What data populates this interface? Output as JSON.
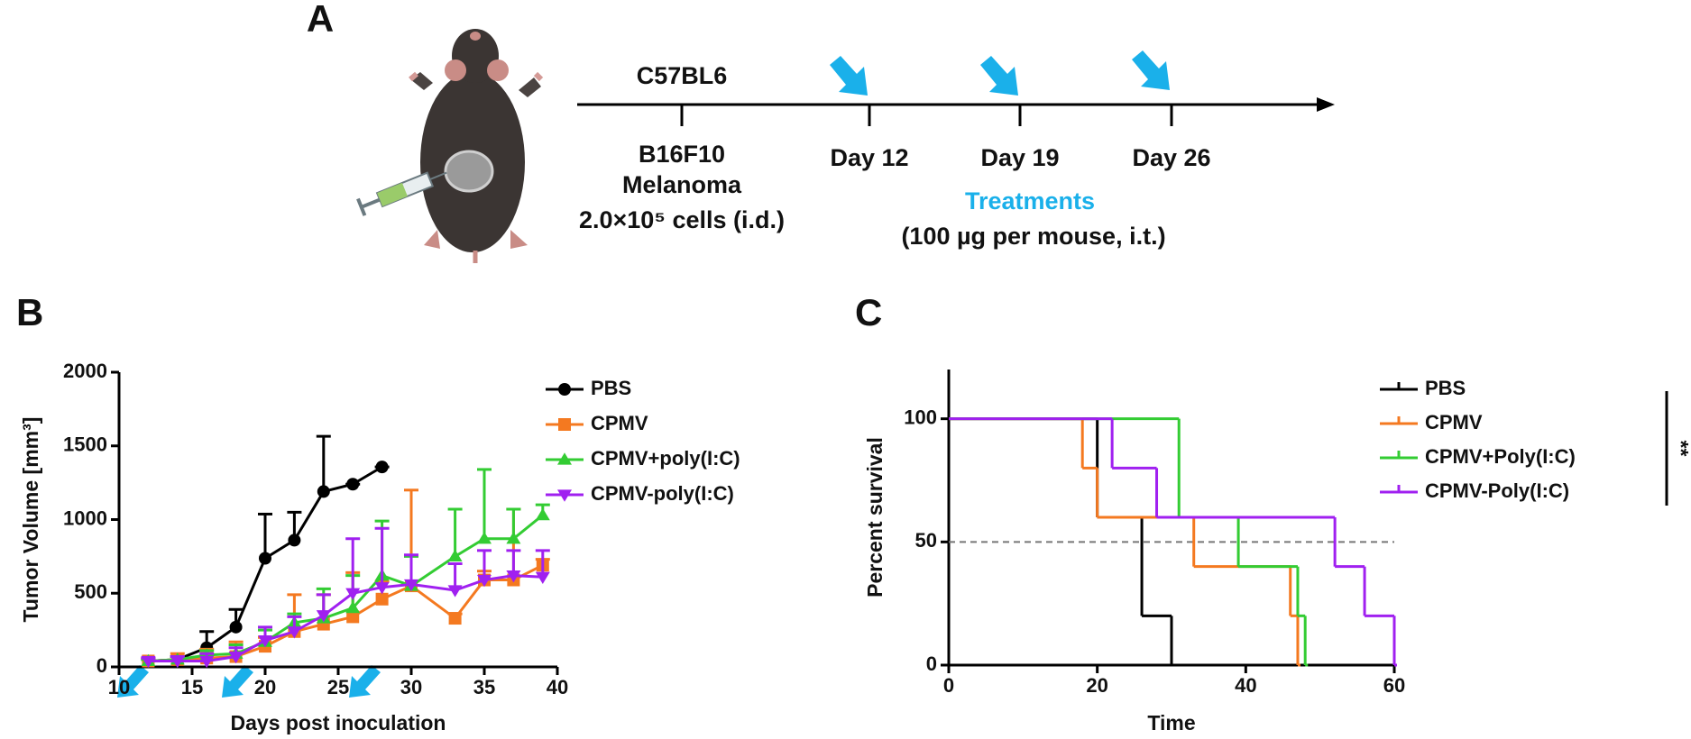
{
  "schematic": {
    "label": "A",
    "strain": "C57BL6",
    "inoculation": [
      "B16F10",
      "Melanoma",
      "2.0×10⁵ cells (i.d.)"
    ],
    "days": [
      "Day 12",
      "Day 19",
      "Day 26"
    ],
    "treatments": "Treatments",
    "dose": "(100 µg per mouse, i.t.)"
  },
  "chart_data": [
    {
      "type": "line",
      "label": "B",
      "xlabel": "Days post inoculation",
      "ylabel": "Tumor Volume [mm³]",
      "xlim": [
        10,
        40
      ],
      "xticks": [
        10,
        15,
        20,
        25,
        30,
        35,
        40
      ],
      "ylim": [
        0,
        2000
      ],
      "yticks": [
        0,
        500,
        1000,
        1500,
        2000
      ],
      "series": [
        {
          "name": "PBS",
          "color": "#000000",
          "marker": "circle",
          "x": [
            12,
            14,
            16,
            18,
            20,
            22,
            24,
            26,
            28
          ],
          "values": [
            40,
            50,
            130,
            270,
            737,
            860,
            1190,
            1240,
            1357
          ],
          "errors": [
            15,
            20,
            110,
            120,
            300,
            190,
            375,
            0,
            0
          ]
        },
        {
          "name": "CPMV",
          "color": "#f47920",
          "marker": "square",
          "x": [
            12,
            14,
            16,
            18,
            20,
            22,
            24,
            26,
            28,
            30,
            33,
            35,
            37,
            39
          ],
          "values": [
            40,
            50,
            60,
            70,
            140,
            240,
            290,
            340,
            460,
            550,
            330,
            590,
            590,
            690
          ],
          "errors": [
            20,
            40,
            60,
            100,
            60,
            250,
            200,
            300,
            120,
            650,
            30,
            60,
            480,
            40
          ]
        },
        {
          "name": "CPMV+poly(I:C)",
          "color": "#33cc33",
          "marker": "triangle-up",
          "x": [
            12,
            14,
            16,
            18,
            20,
            22,
            24,
            26,
            28,
            30,
            33,
            35,
            37,
            39
          ],
          "values": [
            40,
            50,
            80,
            90,
            170,
            300,
            330,
            400,
            620,
            550,
            750,
            870,
            870,
            1030
          ],
          "errors": [
            10,
            20,
            30,
            60,
            80,
            60,
            200,
            220,
            370,
            200,
            320,
            470,
            200,
            70
          ]
        },
        {
          "name": "CPMV-poly(I:C)",
          "color": "#a020f0",
          "marker": "triangle-down",
          "x": [
            12,
            14,
            16,
            18,
            20,
            22,
            24,
            26,
            28,
            30,
            33,
            35,
            37,
            39
          ],
          "values": [
            40,
            40,
            40,
            70,
            180,
            240,
            350,
            500,
            540,
            560,
            520,
            590,
            620,
            610
          ],
          "errors": [
            20,
            30,
            50,
            60,
            90,
            100,
            140,
            370,
            400,
            200,
            180,
            200,
            170,
            180
          ]
        }
      ]
    },
    {
      "type": "step",
      "label": "C",
      "xlabel": "Time",
      "ylabel": "Percent survival",
      "xlim": [
        0,
        60
      ],
      "xticks": [
        0,
        20,
        40,
        60
      ],
      "ylim": [
        0,
        120
      ],
      "yticks": [
        0,
        50,
        100
      ],
      "reference_line": 50,
      "annotation": "**",
      "series": [
        {
          "name": "PBS",
          "color": "#000000",
          "x": [
            0,
            20,
            26,
            30
          ],
          "values": [
            100,
            60,
            20,
            0
          ]
        },
        {
          "name": "CPMV",
          "color": "#f47920",
          "x": [
            0,
            18,
            20,
            33,
            46,
            47
          ],
          "values": [
            100,
            80,
            60,
            40,
            20,
            0
          ]
        },
        {
          "name": "CPMV+Poly(I:C)",
          "color": "#33cc33",
          "x": [
            0,
            31,
            39,
            47,
            48
          ],
          "values": [
            100,
            60,
            40,
            20,
            0
          ]
        },
        {
          "name": "CPMV-Poly(I:C)",
          "color": "#a020f0",
          "x": [
            0,
            22,
            28,
            52,
            56,
            60
          ],
          "values": [
            100,
            80,
            60,
            40,
            20,
            0
          ]
        }
      ]
    }
  ]
}
